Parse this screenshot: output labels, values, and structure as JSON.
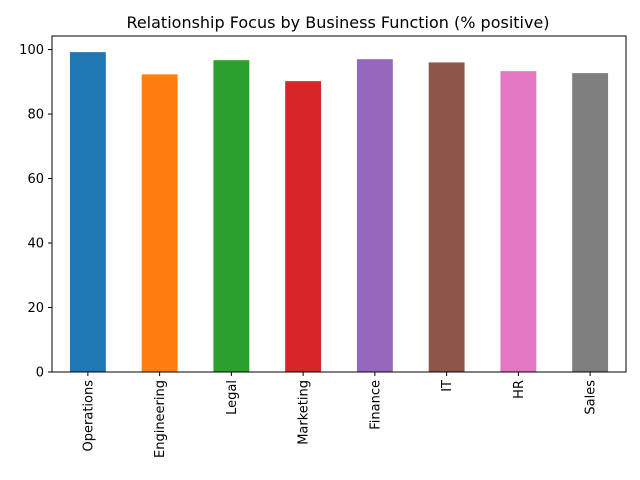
{
  "chart_data": {
    "type": "bar",
    "title": "Relationship Focus by Business Function (% positive)",
    "xlabel": "",
    "ylabel": "",
    "categories": [
      "Operations",
      "Engineering",
      "Legal",
      "Marketing",
      "Finance",
      "IT",
      "HR",
      "Sales"
    ],
    "values": [
      99.2,
      92.3,
      96.7,
      90.2,
      97.0,
      96.0,
      93.3,
      92.7
    ],
    "colors": [
      "#1f77b4",
      "#ff7f0e",
      "#2ca02c",
      "#d62728",
      "#9467bd",
      "#8c564b",
      "#e377c2",
      "#7f7f7f"
    ],
    "ylim": [
      0,
      104.2
    ],
    "yticks": [
      0,
      20,
      40,
      60,
      80,
      100
    ],
    "grid": false,
    "legend": "none"
  }
}
